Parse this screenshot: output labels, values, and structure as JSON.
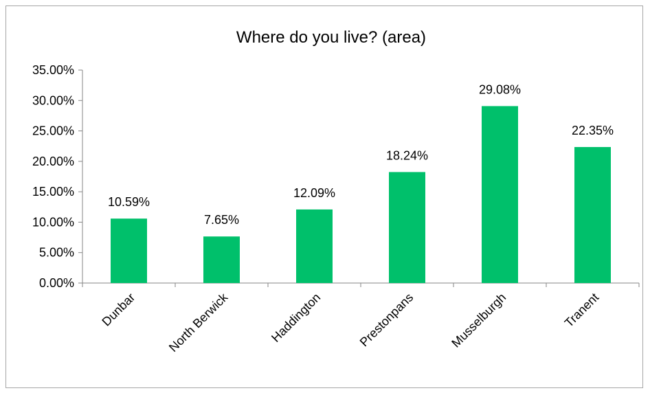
{
  "chart_data": {
    "type": "bar",
    "title": "Where do you live? (area)",
    "xlabel": "",
    "ylabel": "",
    "categories": [
      "Dunbar",
      "North Berwick",
      "Haddington",
      "Prestonpans",
      "Musselburgh",
      "Tranent"
    ],
    "values": [
      10.59,
      7.65,
      12.09,
      18.24,
      29.08,
      22.35
    ],
    "data_labels": [
      "10.59%",
      "7.65%",
      "12.09%",
      "18.24%",
      "29.08%",
      "22.35%"
    ],
    "ylim": [
      0,
      35
    ],
    "y_ticks": [
      0,
      5,
      10,
      15,
      20,
      25,
      30,
      35
    ],
    "y_tick_labels": [
      "0.00%",
      "5.00%",
      "10.00%",
      "15.00%",
      "20.00%",
      "25.00%",
      "30.00%",
      "35.00%"
    ],
    "grid": false,
    "legend": "none",
    "bar_color": "#00c06b"
  }
}
